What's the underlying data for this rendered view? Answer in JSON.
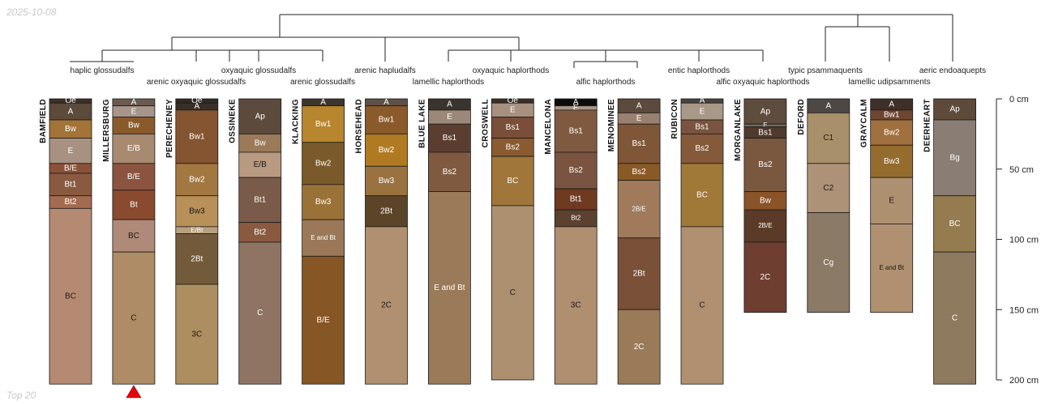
{
  "header": {
    "date": "2025-10-08",
    "footer": "Top 20"
  },
  "axis": {
    "unit": "cm",
    "max_depth": 200,
    "ticks": [
      {
        "value": 0,
        "label": "0 cm"
      },
      {
        "value": 50,
        "label": "50 cm"
      },
      {
        "value": 100,
        "label": "100 cm"
      },
      {
        "value": 150,
        "label": "150 cm"
      },
      {
        "value": 200,
        "label": "200 cm"
      }
    ]
  },
  "taxa": [
    {
      "label": "haplic glossudalfs",
      "row": 1
    },
    {
      "label": "arenic oxyaquic glossudalfs",
      "row": 2
    },
    {
      "label": "oxyaquic glossudalfs",
      "row": 1
    },
    {
      "label": "arenic glossudalfs",
      "row": 2
    },
    {
      "label": "arenic hapludalfs",
      "row": 1
    },
    {
      "label": "lamellic haplorthods",
      "row": 2
    },
    {
      "label": "oxyaquic haplorthods",
      "row": 1
    },
    {
      "label": "alfic haplorthods",
      "row": 2
    },
    {
      "label": "entic haplorthods",
      "row": 1
    },
    {
      "label": "alfic oxyaquic haplorthods",
      "row": 2
    },
    {
      "label": "typic psammaquents",
      "row": 1
    },
    {
      "label": "lamellic udipsamments",
      "row": 2
    },
    {
      "label": "aeric endoaquepts",
      "row": 1
    }
  ],
  "marker": {
    "profile": "MILLERSBURG",
    "color": "#e8000b"
  },
  "profiles": [
    {
      "name": "BAMFIELD",
      "horizons": [
        {
          "name": "Oe",
          "top": 0,
          "bottom": 3,
          "color": "#3d3028",
          "text": "#ffffff"
        },
        {
          "name": "A",
          "top": 3,
          "bottom": 15,
          "color": "#5c4a3a",
          "text": "#ffffff"
        },
        {
          "name": "Bw",
          "top": 15,
          "bottom": 28,
          "color": "#a37438",
          "text": "#ffffff"
        },
        {
          "name": "E",
          "top": 28,
          "bottom": 46,
          "color": "#a89180",
          "text": "#ffffff"
        },
        {
          "name": "B/E",
          "top": 46,
          "bottom": 53,
          "color": "#8a5238",
          "text": "#ffffff"
        },
        {
          "name": "Bt1",
          "top": 53,
          "bottom": 69,
          "color": "#8a5a40",
          "text": "#ffffff"
        },
        {
          "name": "Bt2",
          "top": 69,
          "bottom": 78,
          "color": "#a36c50",
          "text": "#ffffff"
        },
        {
          "name": "BC",
          "top": 78,
          "bottom": 203,
          "color": "#b58a72",
          "text": "#1a1a1a"
        }
      ]
    },
    {
      "name": "MILLERSBURG",
      "horizons": [
        {
          "name": "A",
          "top": 0,
          "bottom": 5,
          "color": "#6a5a50",
          "text": "#ffffff"
        },
        {
          "name": "E",
          "top": 5,
          "bottom": 13,
          "color": "#a8958a",
          "text": "#ffffff"
        },
        {
          "name": "Bw",
          "top": 13,
          "bottom": 25,
          "color": "#8a5a2a",
          "text": "#ffffff"
        },
        {
          "name": "E/B",
          "top": 25,
          "bottom": 46,
          "color": "#a88a70",
          "text": "#ffffff"
        },
        {
          "name": "B/E",
          "top": 46,
          "bottom": 65,
          "color": "#8a5440",
          "text": "#ffffff"
        },
        {
          "name": "Bt",
          "top": 65,
          "bottom": 86,
          "color": "#8a4a30",
          "text": "#ffffff"
        },
        {
          "name": "BC",
          "top": 86,
          "bottom": 109,
          "color": "#b08a78",
          "text": "#1a1a1a"
        },
        {
          "name": "C",
          "top": 109,
          "bottom": 203,
          "color": "#ad8c66",
          "text": "#1a1a1a"
        }
      ]
    },
    {
      "name": "PERECHENEY",
      "horizons": [
        {
          "name": "Oe",
          "top": 0,
          "bottom": 3,
          "color": "#2f2a25",
          "text": "#ffffff"
        },
        {
          "name": "A",
          "top": 3,
          "bottom": 8,
          "color": "#3a2f28",
          "text": "#ffffff"
        },
        {
          "name": "Bw1",
          "top": 8,
          "bottom": 46,
          "color": "#855430",
          "text": "#ffffff"
        },
        {
          "name": "Bw2",
          "top": 46,
          "bottom": 69,
          "color": "#a37840",
          "text": "#ffffff"
        },
        {
          "name": "Bw3",
          "top": 69,
          "bottom": 91,
          "color": "#b89058",
          "text": "#1a1a1a"
        },
        {
          "name": "E/Bt",
          "top": 91,
          "bottom": 96,
          "color": "#b8a080",
          "text": "#ffffff",
          "small": true
        },
        {
          "name": "2Bt",
          "top": 96,
          "bottom": 132,
          "color": "#735a3a",
          "text": "#ffffff"
        },
        {
          "name": "3C",
          "top": 132,
          "bottom": 203,
          "color": "#ad8e60",
          "text": "#1a1a1a"
        }
      ]
    },
    {
      "name": "OSSINEKE",
      "horizons": [
        {
          "name": "Ap",
          "top": 0,
          "bottom": 25,
          "color": "#5c4a3c",
          "text": "#ffffff"
        },
        {
          "name": "Bw",
          "top": 25,
          "bottom": 38,
          "color": "#9a7a58",
          "text": "#ffffff"
        },
        {
          "name": "E/B",
          "top": 38,
          "bottom": 56,
          "color": "#b89a80",
          "text": "#1a1a1a"
        },
        {
          "name": "Bt1",
          "top": 56,
          "bottom": 88,
          "color": "#7a5a48",
          "text": "#ffffff"
        },
        {
          "name": "Bt2",
          "top": 88,
          "bottom": 102,
          "color": "#8a5a40",
          "text": "#ffffff"
        },
        {
          "name": "C",
          "top": 102,
          "bottom": 203,
          "color": "#8f7464",
          "text": "#ffffff"
        }
      ]
    },
    {
      "name": "KLACKING",
      "horizons": [
        {
          "name": "A",
          "top": 0,
          "bottom": 5,
          "color": "#3e362e",
          "text": "#ffffff"
        },
        {
          "name": "Bw1",
          "top": 5,
          "bottom": 31,
          "color": "#b8862e",
          "text": "#ffffff"
        },
        {
          "name": "Bw2",
          "top": 31,
          "bottom": 61,
          "color": "#7a5a2a",
          "text": "#ffffff"
        },
        {
          "name": "Bw3",
          "top": 61,
          "bottom": 86,
          "color": "#9a7238",
          "text": "#ffffff"
        },
        {
          "name": "E and Bt",
          "top": 86,
          "bottom": 112,
          "color": "#9a7858",
          "text": "#ffffff",
          "small": true
        },
        {
          "name": "B/E",
          "top": 112,
          "bottom": 203,
          "color": "#865624",
          "text": "#ffffff"
        }
      ]
    },
    {
      "name": "HORSEHEAD",
      "horizons": [
        {
          "name": "A",
          "top": 0,
          "bottom": 5,
          "color": "#5e5048",
          "text": "#ffffff"
        },
        {
          "name": "Bw1",
          "top": 5,
          "bottom": 25,
          "color": "#8a5a2a",
          "text": "#ffffff"
        },
        {
          "name": "Bw2",
          "top": 25,
          "bottom": 48,
          "color": "#b07a22",
          "text": "#ffffff"
        },
        {
          "name": "Bw3",
          "top": 48,
          "bottom": 69,
          "color": "#9a7240",
          "text": "#ffffff"
        },
        {
          "name": "2Bt",
          "top": 69,
          "bottom": 91,
          "color": "#5c4428",
          "text": "#ffffff"
        },
        {
          "name": "2C",
          "top": 91,
          "bottom": 203,
          "color": "#b09070",
          "text": "#1a1a1a"
        }
      ]
    },
    {
      "name": "BLUE LAKE",
      "horizons": [
        {
          "name": "A",
          "top": 0,
          "bottom": 8,
          "color": "#3a342e",
          "text": "#ffffff"
        },
        {
          "name": "E",
          "top": 8,
          "bottom": 18,
          "color": "#9a8878",
          "text": "#ffffff"
        },
        {
          "name": "Bs1",
          "top": 18,
          "bottom": 38,
          "color": "#5c3e30",
          "text": "#ffffff"
        },
        {
          "name": "Bs2",
          "top": 38,
          "bottom": 66,
          "color": "#805a40",
          "text": "#ffffff"
        },
        {
          "name": "E and Bt",
          "top": 66,
          "bottom": 203,
          "color": "#9a7a58",
          "text": "#ffffff"
        }
      ]
    },
    {
      "name": "CROSWELL",
      "horizons": [
        {
          "name": "Oe",
          "top": 0,
          "bottom": 3,
          "color": "#3a3028",
          "text": "#ffffff"
        },
        {
          "name": "E",
          "top": 3,
          "bottom": 13,
          "color": "#a89080",
          "text": "#ffffff"
        },
        {
          "name": "Bs1",
          "top": 13,
          "bottom": 28,
          "color": "#7a4e38",
          "text": "#ffffff"
        },
        {
          "name": "Bs2",
          "top": 28,
          "bottom": 41,
          "color": "#8a5a30",
          "text": "#ffffff"
        },
        {
          "name": "BC",
          "top": 41,
          "bottom": 76,
          "color": "#a0763a",
          "text": "#ffffff"
        },
        {
          "name": "C",
          "top": 76,
          "bottom": 200,
          "color": "#ad9070",
          "text": "#1a1a1a"
        }
      ]
    },
    {
      "name": "MANCELONA",
      "horizons": [
        {
          "name": "A",
          "top": 0,
          "bottom": 5,
          "color": "#0e0c0a",
          "text": "#ffffff"
        },
        {
          "name": "E",
          "top": 5,
          "bottom": 8,
          "color": "#a8988c",
          "text": "#ffffff"
        },
        {
          "name": "Bs1",
          "top": 8,
          "bottom": 38,
          "color": "#805a40",
          "text": "#ffffff"
        },
        {
          "name": "Bs2",
          "top": 38,
          "bottom": 64,
          "color": "#7a5440",
          "text": "#ffffff"
        },
        {
          "name": "Bt1",
          "top": 64,
          "bottom": 79,
          "color": "#6e3a20",
          "text": "#ffffff"
        },
        {
          "name": "Bt2",
          "top": 79,
          "bottom": 91,
          "color": "#5c4030",
          "text": "#ffffff",
          "small": true
        },
        {
          "name": "3C",
          "top": 91,
          "bottom": 203,
          "color": "#b08e70",
          "text": "#1a1a1a"
        }
      ]
    },
    {
      "name": "MENOMINEE",
      "horizons": [
        {
          "name": "A",
          "top": 0,
          "bottom": 10,
          "color": "#5c4a3c",
          "text": "#ffffff"
        },
        {
          "name": "E",
          "top": 10,
          "bottom": 18,
          "color": "#9a8070",
          "text": "#ffffff"
        },
        {
          "name": "Bs1",
          "top": 18,
          "bottom": 46,
          "color": "#805638",
          "text": "#ffffff"
        },
        {
          "name": "Bs2",
          "top": 46,
          "bottom": 58,
          "color": "#8a5a26",
          "text": "#ffffff"
        },
        {
          "name": "2B/E",
          "top": 58,
          "bottom": 99,
          "color": "#a07a5a",
          "text": "#ffffff",
          "small": true
        },
        {
          "name": "2Bt",
          "top": 99,
          "bottom": 150,
          "color": "#7a5038",
          "text": "#ffffff"
        },
        {
          "name": "2C",
          "top": 150,
          "bottom": 203,
          "color": "#9a7a58",
          "text": "#ffffff"
        }
      ]
    },
    {
      "name": "RUBICON",
      "horizons": [
        {
          "name": "A",
          "top": 0,
          "bottom": 3,
          "color": "#4a4440",
          "text": "#ffffff"
        },
        {
          "name": "E",
          "top": 3,
          "bottom": 15,
          "color": "#a89888",
          "text": "#ffffff"
        },
        {
          "name": "Bs1",
          "top": 15,
          "bottom": 25,
          "color": "#7a5440",
          "text": "#ffffff"
        },
        {
          "name": "Bs2",
          "top": 25,
          "bottom": 46,
          "color": "#845a3a",
          "text": "#ffffff"
        },
        {
          "name": "BC",
          "top": 46,
          "bottom": 91,
          "color": "#a07838",
          "text": "#ffffff"
        },
        {
          "name": "C",
          "top": 91,
          "bottom": 203,
          "color": "#b09070",
          "text": "#1a1a1a"
        }
      ]
    },
    {
      "name": "MORGANLAKE",
      "horizons": [
        {
          "name": "Ap",
          "top": 0,
          "bottom": 18,
          "color": "#5e4c3c",
          "text": "#ffffff"
        },
        {
          "name": "E",
          "top": 18,
          "bottom": 20,
          "color": "#7a6858",
          "text": "#ffffff",
          "small": true
        },
        {
          "name": "Bs1",
          "top": 20,
          "bottom": 28,
          "color": "#4e3a2e",
          "text": "#ffffff"
        },
        {
          "name": "Bs2",
          "top": 28,
          "bottom": 66,
          "color": "#7a5840",
          "text": "#ffffff"
        },
        {
          "name": "Bw",
          "top": 66,
          "bottom": 79,
          "color": "#8a5428",
          "text": "#ffffff"
        },
        {
          "name": "2B/E",
          "top": 79,
          "bottom": 102,
          "color": "#5c3a28",
          "text": "#ffffff",
          "small": true
        },
        {
          "name": "2C",
          "top": 102,
          "bottom": 152,
          "color": "#6e3e30",
          "text": "#ffffff"
        }
      ]
    },
    {
      "name": "DEFORD",
      "horizons": [
        {
          "name": "A",
          "top": 0,
          "bottom": 10,
          "color": "#4e4844",
          "text": "#ffffff"
        },
        {
          "name": "C1",
          "top": 10,
          "bottom": 46,
          "color": "#a8906a",
          "text": "#1a1a1a"
        },
        {
          "name": "C2",
          "top": 46,
          "bottom": 81,
          "color": "#ad9278",
          "text": "#1a1a1a"
        },
        {
          "name": "Cg",
          "top": 81,
          "bottom": 152,
          "color": "#8a7a66",
          "text": "#ffffff"
        }
      ]
    },
    {
      "name": "GRAYCALM",
      "horizons": [
        {
          "name": "A",
          "top": 0,
          "bottom": 8,
          "color": "#3e3028",
          "text": "#ffffff"
        },
        {
          "name": "Bw1",
          "top": 8,
          "bottom": 15,
          "color": "#6e4630",
          "text": "#ffffff"
        },
        {
          "name": "Bw2",
          "top": 15,
          "bottom": 33,
          "color": "#a0703e",
          "text": "#ffffff"
        },
        {
          "name": "Bw3",
          "top": 33,
          "bottom": 56,
          "color": "#946c2e",
          "text": "#ffffff"
        },
        {
          "name": "E",
          "top": 56,
          "bottom": 89,
          "color": "#ad9070",
          "text": "#1a1a1a"
        },
        {
          "name": "E and Bt",
          "top": 89,
          "bottom": 152,
          "color": "#b09070",
          "text": "#1a1a1a",
          "small": true
        }
      ]
    },
    {
      "name": "DEERHEART",
      "horizons": [
        {
          "name": "Ap",
          "top": 0,
          "bottom": 15,
          "color": "#5e4a3a",
          "text": "#ffffff"
        },
        {
          "name": "Bg",
          "top": 15,
          "bottom": 69,
          "color": "#8a7e74",
          "text": "#ffffff"
        },
        {
          "name": "BC",
          "top": 69,
          "bottom": 109,
          "color": "#947c50",
          "text": "#ffffff"
        },
        {
          "name": "C",
          "top": 109,
          "bottom": 203,
          "color": "#8e7a5e",
          "text": "#ffffff"
        }
      ]
    }
  ]
}
